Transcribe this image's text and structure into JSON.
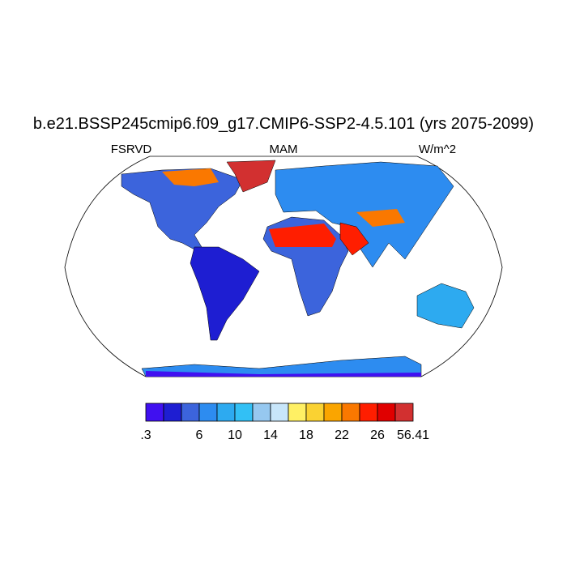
{
  "header": {
    "title": "b.e21.BSSP245cmip6.f09_g17.CMIP6-SSP2-4.5.101 (yrs 2075-2099)",
    "left": "FSRVD",
    "center": "MAM",
    "right": "W/m^2"
  },
  "colorbar": {
    "colors": [
      "#4010f0",
      "#1e1ed2",
      "#3c64dc",
      "#2d8cf0",
      "#2daaf0",
      "#32c0f5",
      "#96c8f0",
      "#c8e6fa",
      "#fff064",
      "#fad232",
      "#faa500",
      "#fa7800",
      "#ff1e00",
      "#e00000",
      "#d23030"
    ],
    "labels": [
      ".3",
      "6",
      "10",
      "14",
      "18",
      "22",
      "26",
      "56.41"
    ]
  }
}
